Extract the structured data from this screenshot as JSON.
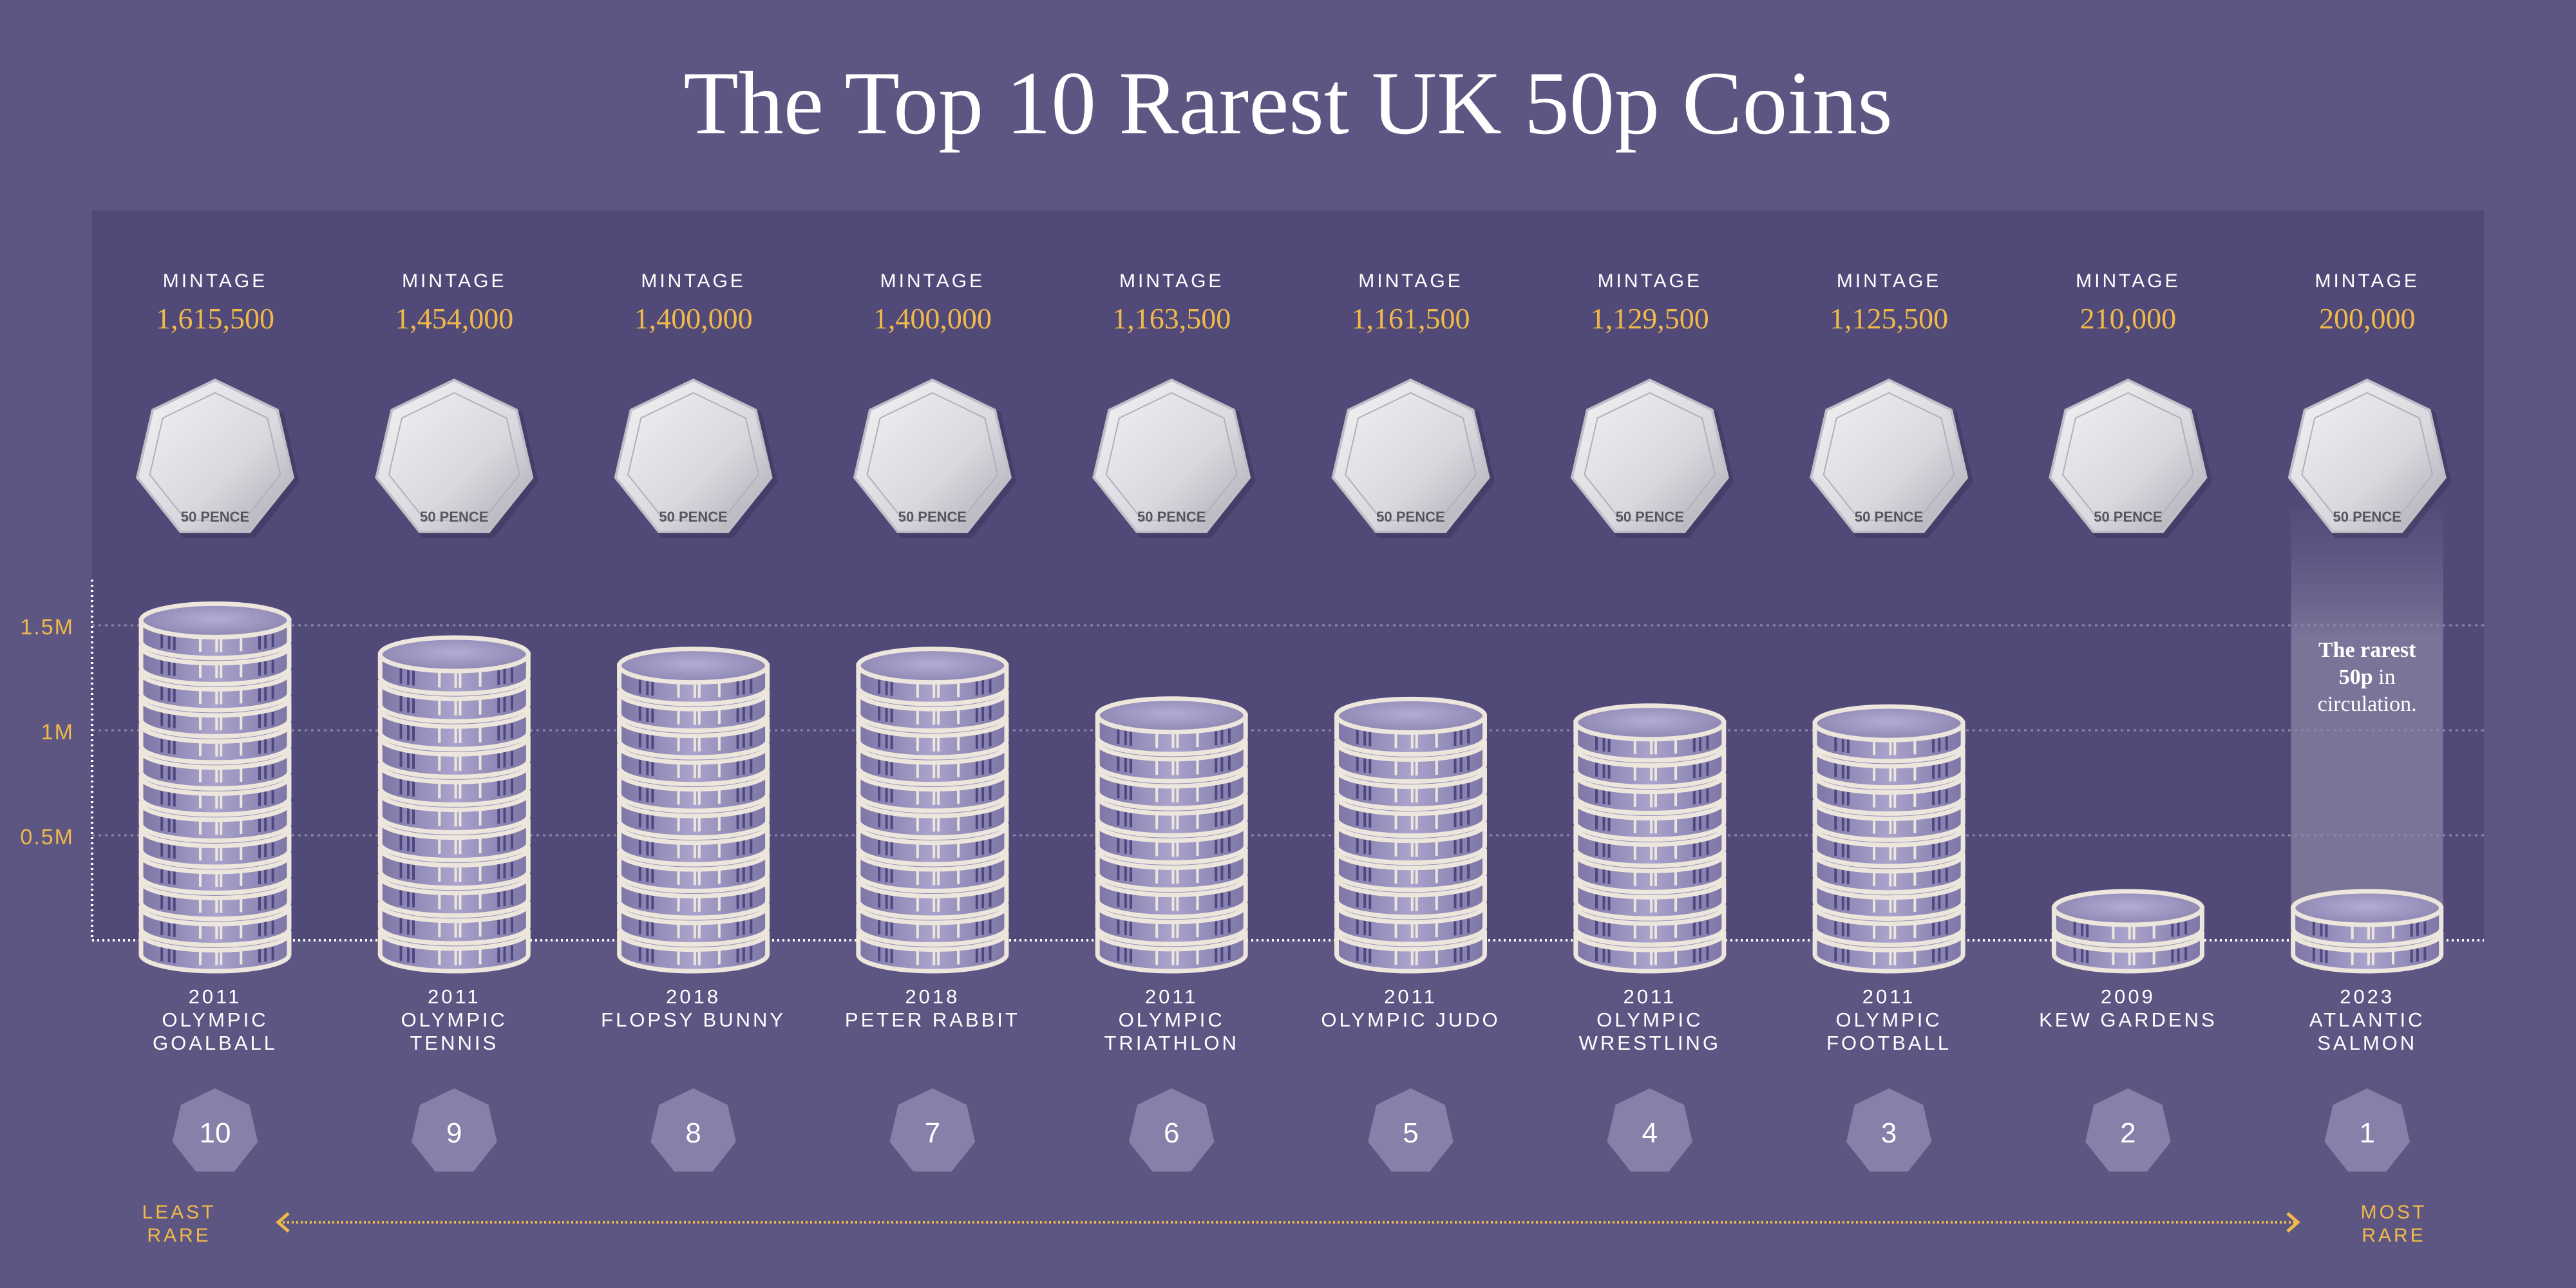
{
  "title": "The Top 10 Rarest UK 50p Coins",
  "colors": {
    "background": "#5d5683",
    "panel": "#514a78",
    "accent": "#f0b94a",
    "highlight": "#7b7499",
    "rank_badge": "#8780a8",
    "coin_edge": "#ece6dc",
    "coin_face": "#9891bb"
  },
  "mintage_label": "MINTAGE",
  "coin_face_text": "50 PENCE",
  "highlight_note": {
    "bold": "The rarest 50p",
    "rest": "in circulation.",
    "line1": "The rarest",
    "line2_bold": "50p",
    "line2_rest": "in",
    "line3": "circulation."
  },
  "legend": {
    "left": [
      "LEAST",
      "RARE"
    ],
    "right": [
      "MOST",
      "RARE"
    ]
  },
  "chart_data": {
    "type": "bar",
    "title": "The Top 10 Rarest UK 50p Coins",
    "ylabel": "",
    "xlabel": "",
    "ylim": [
      0,
      1700000
    ],
    "yticks": [
      {
        "value": 500000,
        "label": "0.5M"
      },
      {
        "value": 1000000,
        "label": "1M"
      },
      {
        "value": 1500000,
        "label": "1.5M"
      }
    ],
    "grid": true,
    "categories": [
      {
        "rank": 10,
        "year": "2011",
        "name": [
          "OLYMPIC",
          "GOALBALL"
        ],
        "mintage": 1615500,
        "mintage_label": "1,615,500"
      },
      {
        "rank": 9,
        "year": "2011",
        "name": [
          "OLYMPIC",
          "TENNIS"
        ],
        "mintage": 1454000,
        "mintage_label": "1,454,000"
      },
      {
        "rank": 8,
        "year": "2018",
        "name": [
          "FLOPSY BUNNY"
        ],
        "mintage": 1400000,
        "mintage_label": "1,400,000"
      },
      {
        "rank": 7,
        "year": "2018",
        "name": [
          "PETER RABBIT"
        ],
        "mintage": 1400000,
        "mintage_label": "1,400,000"
      },
      {
        "rank": 6,
        "year": "2011",
        "name": [
          "OLYMPIC",
          "TRIATHLON"
        ],
        "mintage": 1163500,
        "mintage_label": "1,163,500"
      },
      {
        "rank": 5,
        "year": "2011",
        "name": [
          "OLYMPIC JUDO"
        ],
        "mintage": 1161500,
        "mintage_label": "1,161,500"
      },
      {
        "rank": 4,
        "year": "2011",
        "name": [
          "OLYMPIC",
          "WRESTLING"
        ],
        "mintage": 1129500,
        "mintage_label": "1,129,500"
      },
      {
        "rank": 3,
        "year": "2011",
        "name": [
          "OLYMPIC",
          "FOOTBALL"
        ],
        "mintage": 1125500,
        "mintage_label": "1,125,500"
      },
      {
        "rank": 2,
        "year": "2009",
        "name": [
          "KEW GARDENS"
        ],
        "mintage": 210000,
        "mintage_label": "210,000"
      },
      {
        "rank": 1,
        "year": "2023",
        "name": [
          "ATLANTIC",
          "SALMON"
        ],
        "mintage": 200000,
        "mintage_label": "200,000",
        "highlight": true
      }
    ]
  }
}
